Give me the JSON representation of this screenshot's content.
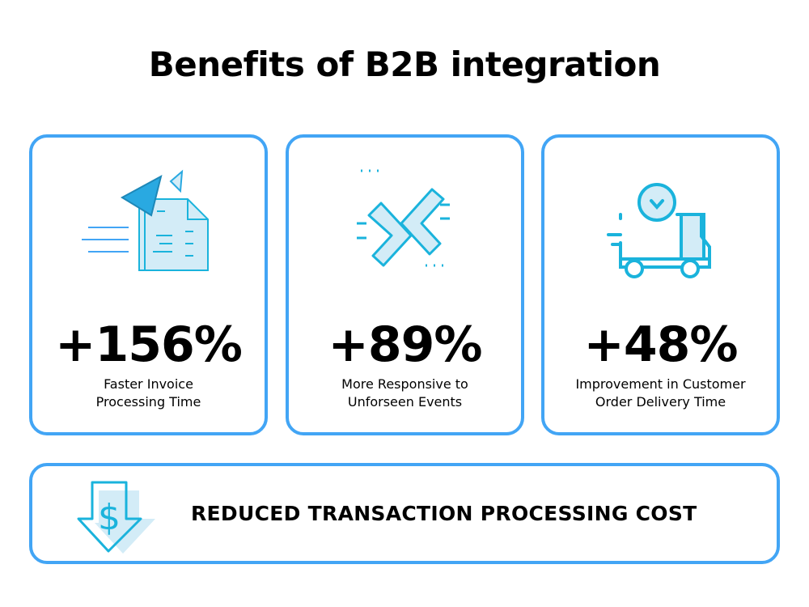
{
  "title": "Benefits of B2B integration",
  "cards": [
    {
      "stat": "+156%",
      "line1": "Faster Invoice",
      "line2": "Processing Time",
      "icon": "paper-plane-document-icon"
    },
    {
      "stat": "+89%",
      "line1": "More Responsive to",
      "line2": "Unforseen Events",
      "icon": "integration-arrows-icon"
    },
    {
      "stat": "+48%",
      "line1": "Improvement in Customer",
      "line2": "Order Delivery Time",
      "icon": "delivery-truck-clock-icon"
    }
  ],
  "bottom": {
    "text": "REDUCED TRANSACTION PROCESSING COST",
    "icon": "dollar-down-arrow-icon"
  },
  "colors": {
    "border": "#42a5f5",
    "icon_stroke": "#1ab3dc",
    "icon_fill": "#d3ecf7",
    "text": "#000000"
  }
}
